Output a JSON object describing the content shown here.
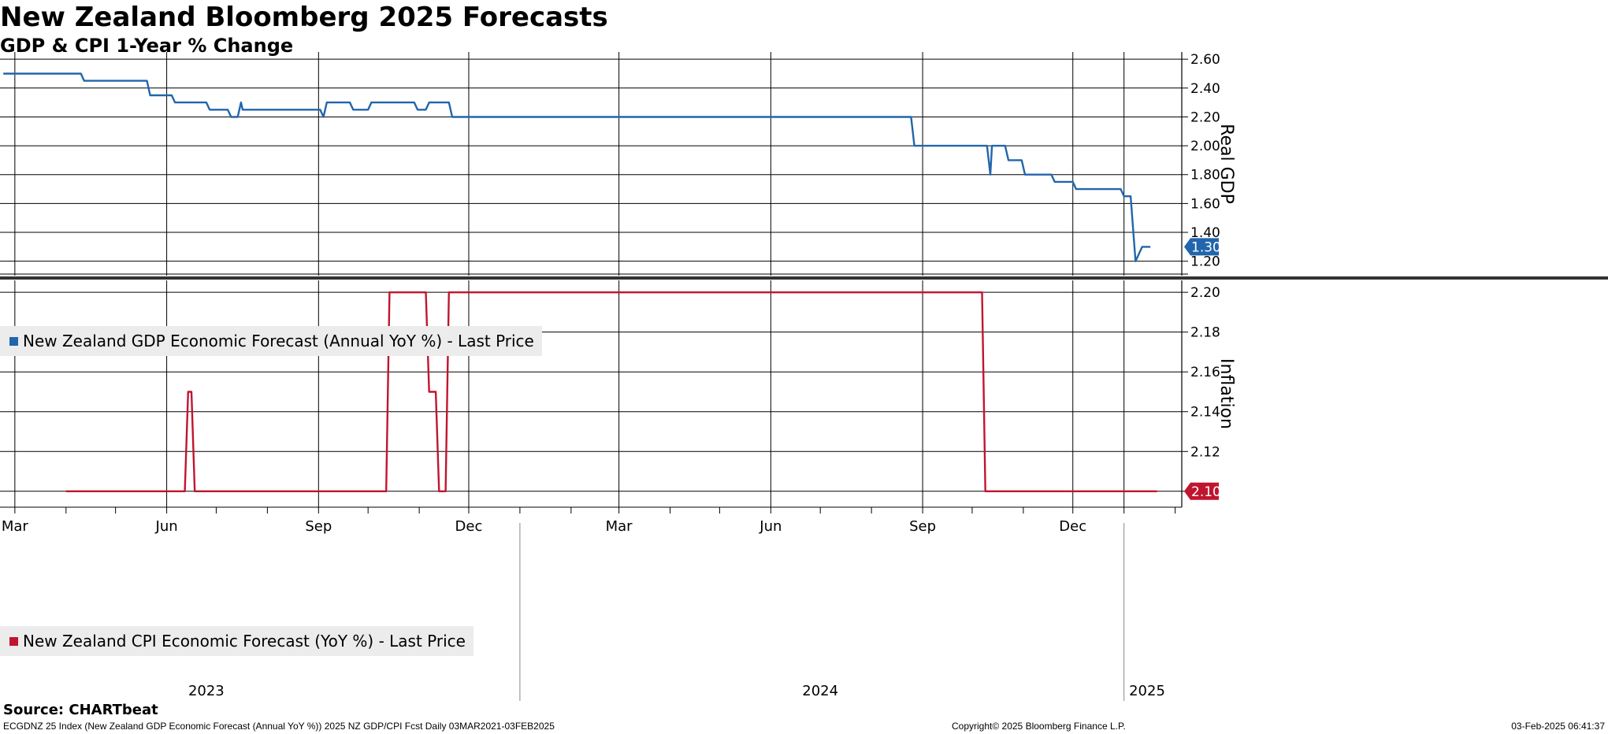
{
  "header": {
    "title": "New Zealand Bloomberg 2025 Forecasts",
    "subtitle": "GDP & CPI 1-Year % Change"
  },
  "chart_data": [
    {
      "type": "line",
      "ylabel": "Real GDP",
      "ylim": [
        1.1,
        2.65
      ],
      "yticks": [
        1.2,
        1.4,
        1.6,
        1.8,
        2.0,
        2.2,
        2.4,
        2.6
      ],
      "ytick_labels": [
        "1.20",
        "1.40",
        "1.60",
        "1.80",
        "2.00",
        "2.20",
        "2.40",
        "2.60"
      ],
      "last_value_label": "1.30",
      "color": "#2166ac",
      "series": [
        {
          "name": "New Zealand GDP Economic Forecast (Annual YoY %) - Last Price",
          "points": [
            [
              "2023-02-22",
              2.5
            ],
            [
              "2023-04-10",
              2.5
            ],
            [
              "2023-04-12",
              2.45
            ],
            [
              "2023-05-20",
              2.45
            ],
            [
              "2023-05-22",
              2.35
            ],
            [
              "2023-06-04",
              2.35
            ],
            [
              "2023-06-06",
              2.3
            ],
            [
              "2023-06-25",
              2.3
            ],
            [
              "2023-06-27",
              2.25
            ],
            [
              "2023-07-08",
              2.25
            ],
            [
              "2023-07-10",
              2.2
            ],
            [
              "2023-07-14",
              2.2
            ],
            [
              "2023-07-16",
              2.3
            ],
            [
              "2023-07-17",
              2.25
            ],
            [
              "2023-09-02",
              2.25
            ],
            [
              "2023-09-04",
              2.2
            ],
            [
              "2023-09-06",
              2.3
            ],
            [
              "2023-09-20",
              2.3
            ],
            [
              "2023-09-22",
              2.25
            ],
            [
              "2023-10-01",
              2.25
            ],
            [
              "2023-10-03",
              2.3
            ],
            [
              "2023-10-29",
              2.3
            ],
            [
              "2023-10-31",
              2.25
            ],
            [
              "2023-11-05",
              2.25
            ],
            [
              "2023-11-07",
              2.3
            ],
            [
              "2023-11-19",
              2.3
            ],
            [
              "2023-11-21",
              2.2
            ],
            [
              "2024-08-25",
              2.2
            ],
            [
              "2024-08-27",
              2.0
            ],
            [
              "2024-10-10",
              2.0
            ],
            [
              "2024-10-12",
              1.8
            ],
            [
              "2024-10-13",
              2.0
            ],
            [
              "2024-10-21",
              2.0
            ],
            [
              "2024-10-23",
              1.9
            ],
            [
              "2024-10-31",
              1.9
            ],
            [
              "2024-11-02",
              1.8
            ],
            [
              "2024-11-18",
              1.8
            ],
            [
              "2024-11-20",
              1.75
            ],
            [
              "2024-12-01",
              1.75
            ],
            [
              "2024-12-03",
              1.7
            ],
            [
              "2024-12-30",
              1.7
            ],
            [
              "2025-01-01",
              1.65
            ],
            [
              "2025-01-05",
              1.65
            ],
            [
              "2025-01-08",
              1.2
            ],
            [
              "2025-01-12",
              1.3
            ],
            [
              "2025-01-17",
              1.3
            ]
          ]
        }
      ]
    },
    {
      "type": "line",
      "ylabel": "Inflation",
      "ylim": [
        2.092,
        2.206
      ],
      "yticks": [
        2.1,
        2.12,
        2.14,
        2.16,
        2.18,
        2.2
      ],
      "ytick_labels": [
        "2.10",
        "2.12",
        "2.14",
        "2.16",
        "2.18",
        "2.20"
      ],
      "last_value_label": "2.10",
      "color": "#c0152f",
      "series": [
        {
          "name": "New Zealand CPI Economic Forecast (YoY %) - Last Price",
          "points": [
            [
              "2023-04-01",
              2.1
            ],
            [
              "2023-06-12",
              2.1
            ],
            [
              "2023-06-14",
              2.15
            ],
            [
              "2023-06-16",
              2.15
            ],
            [
              "2023-06-18",
              2.1
            ],
            [
              "2023-10-12",
              2.1
            ],
            [
              "2023-10-14",
              2.2
            ],
            [
              "2023-11-05",
              2.2
            ],
            [
              "2023-11-07",
              2.15
            ],
            [
              "2023-11-11",
              2.15
            ],
            [
              "2023-11-13",
              2.1
            ],
            [
              "2023-11-17",
              2.1
            ],
            [
              "2023-11-19",
              2.2
            ],
            [
              "2024-10-07",
              2.2
            ],
            [
              "2024-10-09",
              2.1
            ],
            [
              "2025-01-21",
              2.1
            ]
          ]
        }
      ]
    }
  ],
  "x_axis": {
    "range": [
      "2023-02-20",
      "2025-02-05"
    ],
    "month_ticks": [
      {
        "date": "2023-03-01",
        "label": "Mar"
      },
      {
        "date": "2023-06-01",
        "label": "Jun"
      },
      {
        "date": "2023-09-01",
        "label": "Sep"
      },
      {
        "date": "2023-12-01",
        "label": "Dec"
      },
      {
        "date": "2024-03-01",
        "label": "Mar"
      },
      {
        "date": "2024-06-01",
        "label": "Jun"
      },
      {
        "date": "2024-09-01",
        "label": "Sep"
      },
      {
        "date": "2024-12-01",
        "label": "Dec"
      }
    ],
    "year_labels": [
      {
        "anchor": "2023-06-25",
        "label": "2023"
      },
      {
        "anchor": "2024-07-01",
        "label": "2024"
      },
      {
        "anchor": "2025-01-15",
        "label": "2025"
      }
    ],
    "year_boundaries": [
      "2024-01-01",
      "2025-01-01"
    ],
    "gridline_dates": [
      "2023-03-01",
      "2023-06-01",
      "2023-09-01",
      "2023-12-01",
      "2024-03-01",
      "2024-06-01",
      "2024-09-01",
      "2024-12-01",
      "2025-01-01"
    ]
  },
  "footer": {
    "source": "Source: CHARTbeat",
    "left": "ECGDNZ 25 Index (New Zealand GDP Economic Forecast (Annual YoY %)) 2025 NZ GDP/CPI Fcst  Daily 03MAR2021-03FEB2025",
    "center": "Copyright© 2025 Bloomberg Finance L.P.",
    "right": "03-Feb-2025 06:41:37"
  }
}
